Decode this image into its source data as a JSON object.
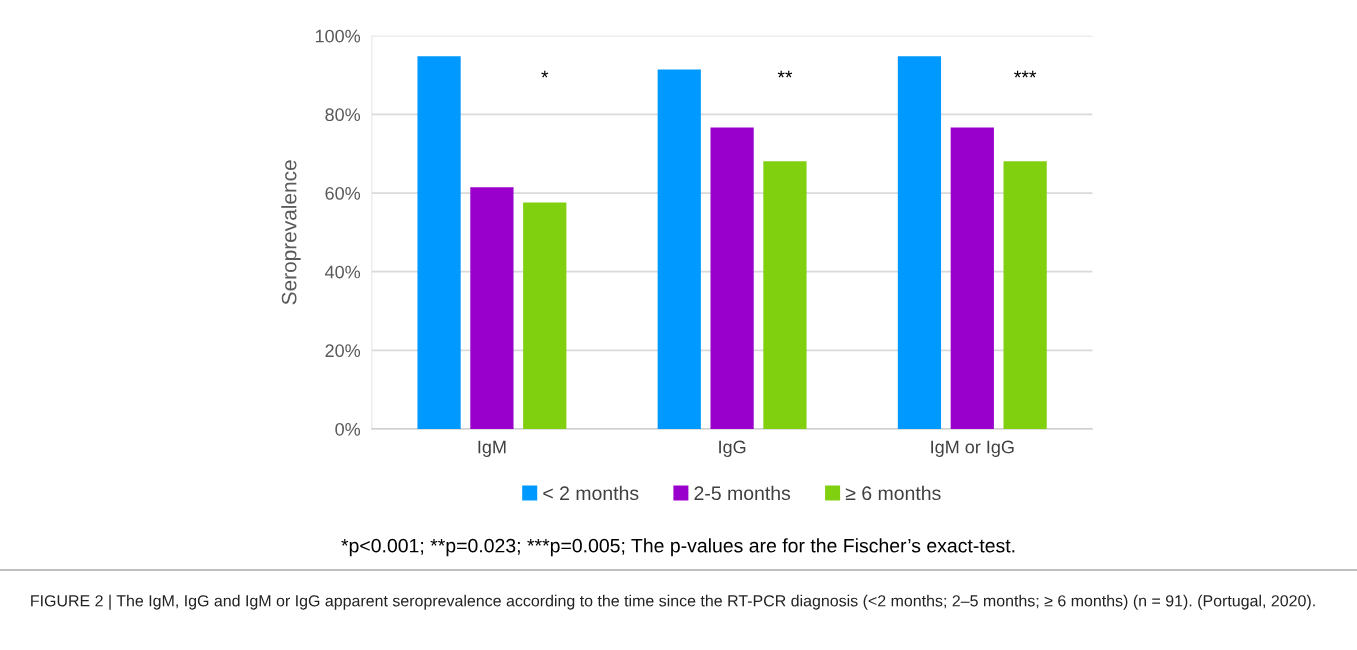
{
  "chart_data": {
    "type": "bar",
    "ylabel": "Seroprevalence",
    "categories": [
      "IgM",
      "IgG",
      "IgM or IgG"
    ],
    "series": [
      {
        "name": "< 2 months",
        "color": "#0099ff",
        "values": [
          94.8,
          91.4,
          94.8
        ]
      },
      {
        "name": "2-5 months",
        "color": "#9900cc",
        "values": [
          61.5,
          76.7,
          76.7
        ]
      },
      {
        "name": "≥ 6 months",
        "color": "#80d010",
        "values": [
          57.6,
          68.1,
          68.1
        ]
      }
    ],
    "ylim": [
      0,
      100
    ],
    "yticks": [
      {
        "value": 0,
        "label": "0%"
      },
      {
        "value": 20,
        "label": "20%"
      },
      {
        "value": 40,
        "label": "40%"
      },
      {
        "value": 60,
        "label": "60%"
      },
      {
        "value": 80,
        "label": "80%"
      },
      {
        "value": 100,
        "label": "100%"
      }
    ],
    "grid": "y",
    "legend": "bottom",
    "annotations": [
      "*",
      "**",
      "***",
      "*p<0.001; **p=0.023; ***p=0.005; The p-values are for the Fischer’s exact-test.",
      "FIGURE 2 | The IgM, IgG and IgM or IgG apparent seroprevalence according to the time since the RT-PCR diagnosis (<2 months; 2–5 months; ≥ 6 months) (n = 91). (Portugal, 2020)."
    ]
  }
}
